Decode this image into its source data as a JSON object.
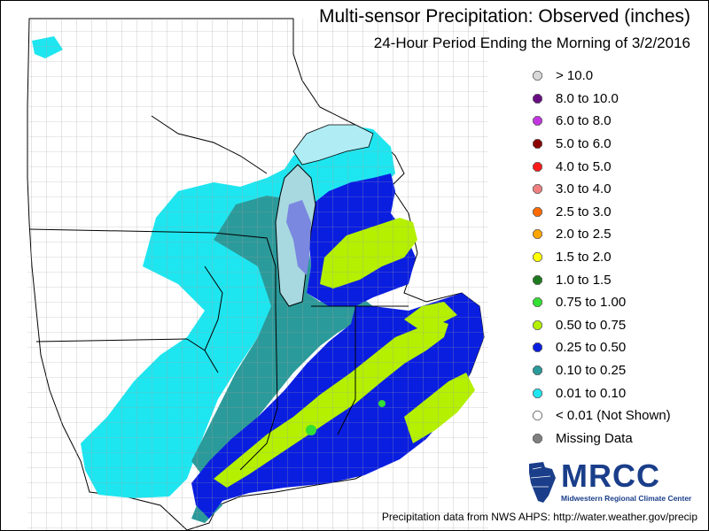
{
  "title": "Multi-sensor Precipitation:  Observed (inches)",
  "subtitle": "24-Hour Period Ending the Morning of 3/2/2016",
  "legend": [
    {
      "label": "> 10.0",
      "color": "#d8d8d8"
    },
    {
      "label": "8.0 to 10.0",
      "color": "#6a0d83"
    },
    {
      "label": "6.0 to 8.0",
      "color": "#c236e0"
    },
    {
      "label": "5.0 to 6.0",
      "color": "#8b0000"
    },
    {
      "label": "4.0 to 5.0",
      "color": "#ff1a1a"
    },
    {
      "label": "3.0 to 4.0",
      "color": "#f08080"
    },
    {
      "label": "2.5 to 3.0",
      "color": "#ff6a00"
    },
    {
      "label": "2.0 to 2.5",
      "color": "#ffa500"
    },
    {
      "label": "1.5 to 2.0",
      "color": "#ffff00"
    },
    {
      "label": "1.0 to 1.5",
      "color": "#1e7a1e"
    },
    {
      "label": "0.75 to 1.00",
      "color": "#33e033"
    },
    {
      "label": "0.50 to 0.75",
      "color": "#b4f000"
    },
    {
      "label": "0.25 to 0.50",
      "color": "#0a1ee0"
    },
    {
      "label": "0.10 to 0.25",
      "color": "#2b9a9a"
    },
    {
      "label": "0.01 to 0.10",
      "color": "#1ee6f0"
    },
    {
      "label": "< 0.01 (Not Shown)",
      "color": "#ffffff"
    },
    {
      "label": "Missing Data",
      "color": "#808080"
    }
  ],
  "logo": {
    "name": "MRCC",
    "subtitle": "Midwestern Regional Climate Center"
  },
  "footer": "Precipitation data from NWS AHPS: http://water.weather.gov/precip",
  "map_colors": {
    "land": "#ffffff",
    "county_lines": "#a0a0a0",
    "state_lines": "#000000",
    "lake_fill": "#a8d8e0",
    "lake_purple": "#7a88e0",
    "lake_superior": "#b0ecf4"
  }
}
